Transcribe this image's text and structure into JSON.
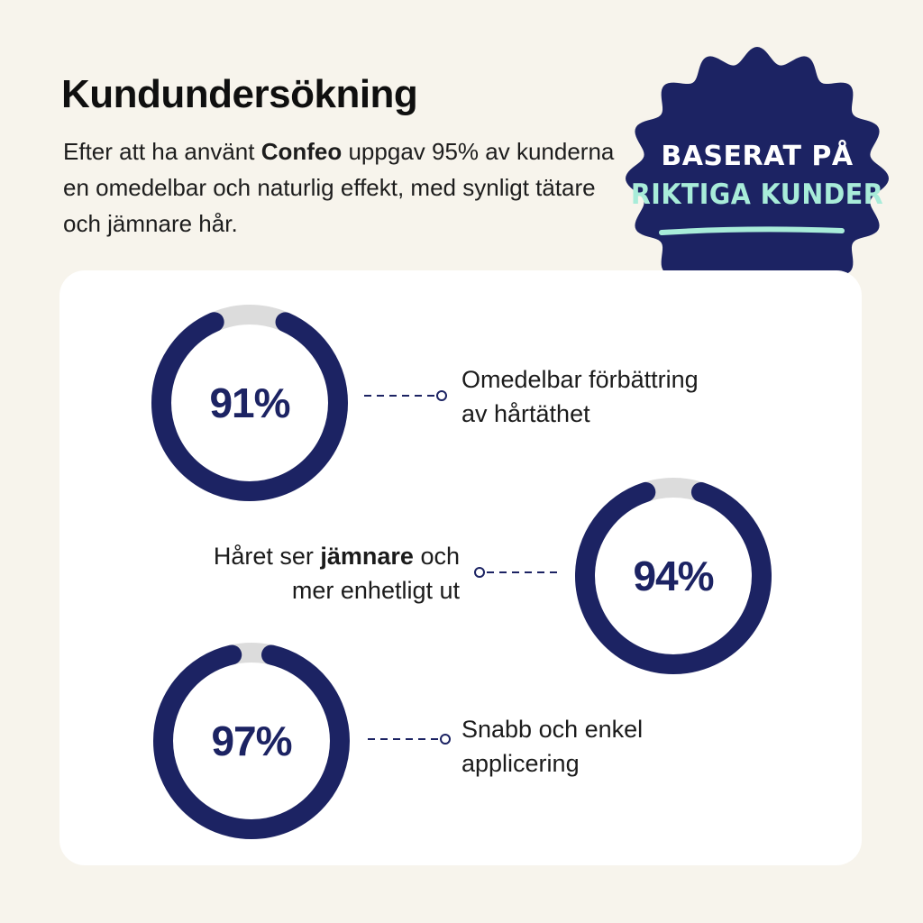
{
  "heading": {
    "title": "Kundundersökning"
  },
  "intro": {
    "part1": "Efter att ha använt ",
    "brand": "Confeo",
    "part2": " uppgav 95% av kunderna en omedelbar och naturlig effekt, med synligt tätare och jämnare hår."
  },
  "seal": {
    "line1": "BASERAT PÅ",
    "line2": "RIKTIGA KUNDER",
    "color": "#1c2363",
    "accent": "#a8ecd9"
  },
  "stats": [
    {
      "percent_label": "91%",
      "value": 91,
      "label_line1": "Omedelbar förbättring",
      "label_line2": "av hårtäthet"
    },
    {
      "percent_label": "94%",
      "value": 94,
      "label_pre": "Håret ser ",
      "label_bold": "jämnare",
      "label_post": " och",
      "label_line2": "mer enhetligt ut"
    },
    {
      "percent_label": "97%",
      "value": 97,
      "label_line1": "Snabb och enkel",
      "label_line2": "applicering"
    }
  ],
  "colors": {
    "ring": "#1c2363",
    "track": "#dcdcdc",
    "background": "#f7f4ec",
    "card": "#ffffff"
  }
}
